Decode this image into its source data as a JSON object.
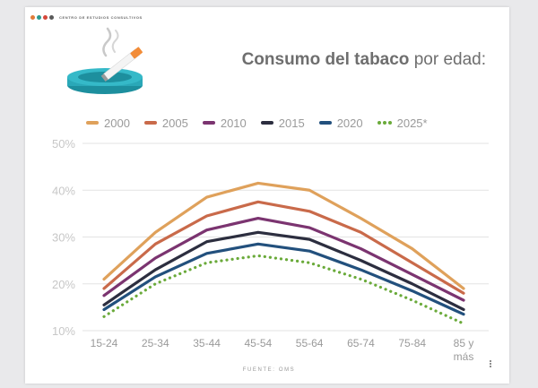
{
  "header": {
    "brand_text": "CENTRO DE ESTUDIOS CONSULTIVOS",
    "brand_dot_colors": [
      "#e07b39",
      "#2b9a8f",
      "#d5473a",
      "#5a5a5a"
    ],
    "title_bold": "Consumo del tabaco",
    "title_rest": " por edad:"
  },
  "icon": {
    "name": "ashtray-cigarette-icon",
    "colors": {
      "ashtray": "#2aa8b8",
      "cigarette": "#f28c38"
    }
  },
  "footer": {
    "source": "FUENTE: OMS"
  },
  "chart_data": {
    "type": "line",
    "title": "Consumo del tabaco por edad:",
    "categories": [
      "15-24",
      "25-34",
      "35-44",
      "45-54",
      "55-64",
      "65-74",
      "75-84",
      "85 y más"
    ],
    "y_tick_labels": [
      "50%",
      "40%",
      "30%",
      "20%",
      "10%"
    ],
    "y_ticks": [
      50,
      40,
      30,
      20,
      10
    ],
    "ylim": [
      10,
      50
    ],
    "grid": true,
    "legend_position": "top",
    "series": [
      {
        "name": "2000",
        "color": "#dfa15b",
        "style": "solid",
        "values": [
          21,
          31,
          38.5,
          41.5,
          40,
          34,
          27.5,
          19
        ]
      },
      {
        "name": "2005",
        "color": "#c96a4a",
        "style": "solid",
        "values": [
          19,
          28.5,
          34.5,
          37.5,
          35.5,
          31,
          24.5,
          18
        ]
      },
      {
        "name": "2010",
        "color": "#7b3470",
        "style": "solid",
        "values": [
          17.5,
          25.5,
          31.5,
          34,
          32,
          27.5,
          22,
          16.5
        ]
      },
      {
        "name": "2015",
        "color": "#2c2e3f",
        "style": "solid",
        "values": [
          15.5,
          23,
          29,
          31,
          29.5,
          25,
          20,
          14.5
        ]
      },
      {
        "name": "2020",
        "color": "#22507d",
        "style": "solid",
        "values": [
          14.5,
          21.5,
          26.5,
          28.5,
          27,
          23,
          18.5,
          13.5
        ]
      },
      {
        "name": "2025*",
        "color": "#6aaa3a",
        "style": "dotted",
        "values": [
          13,
          20,
          24.5,
          26,
          24.5,
          21,
          16.5,
          11.5
        ]
      }
    ]
  }
}
